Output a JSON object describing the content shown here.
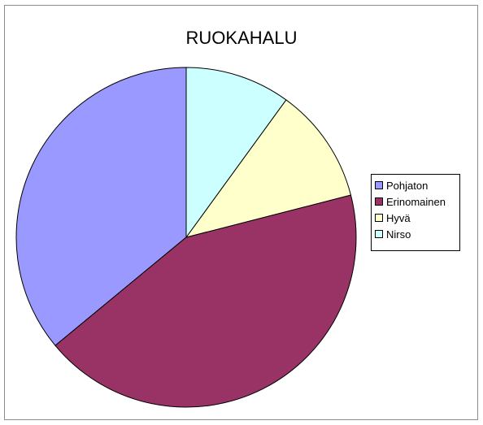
{
  "chart_data": {
    "type": "pie",
    "title": "RUOKAHALU",
    "categories": [
      "Pohjaton",
      "Erinomainen",
      "Hyvä",
      "Nirso"
    ],
    "values": [
      36,
      43,
      11,
      10
    ],
    "colors": [
      "#9999ff",
      "#993366",
      "#ffffcc",
      "#ccffff"
    ],
    "start_angle_deg": 0,
    "direction": "counterclockwise",
    "legend_position": "right",
    "slice_labels": false
  }
}
